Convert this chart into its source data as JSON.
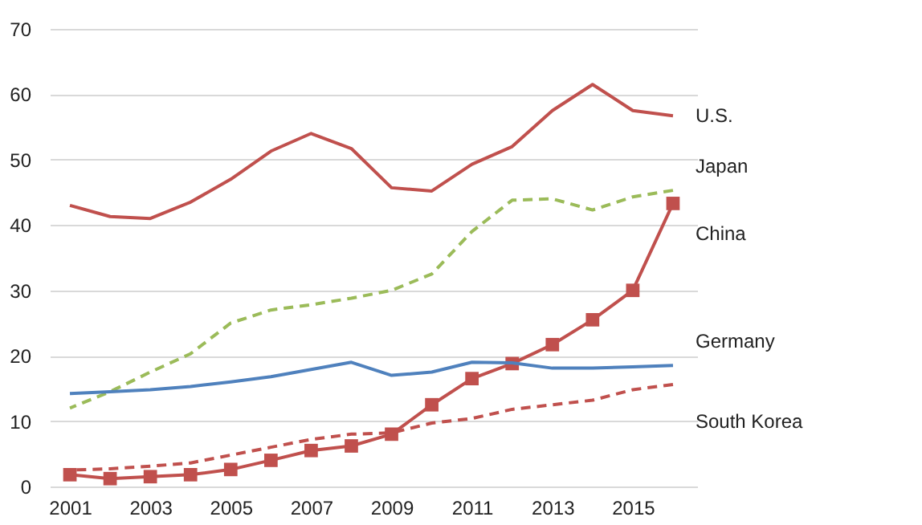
{
  "chart_data": {
    "type": "line",
    "x": [
      2001,
      2002,
      2003,
      2004,
      2005,
      2006,
      2007,
      2008,
      2009,
      2010,
      2011,
      2012,
      2013,
      2014,
      2015,
      2016
    ],
    "xlim": [
      2000.5,
      2016.6
    ],
    "xticks": [
      2001,
      2003,
      2005,
      2007,
      2009,
      2011,
      2013,
      2015
    ],
    "ylim": [
      0,
      70
    ],
    "yticks": [
      0,
      10,
      20,
      30,
      40,
      50,
      60,
      70
    ],
    "grid": "y",
    "legend": false,
    "series": [
      {
        "name": "U.S.",
        "color": "#c0504d",
        "line_style": "solid",
        "marker": "none",
        "values": [
          43,
          41.3,
          41,
          43.5,
          47,
          51.3,
          54,
          51.7,
          45.7,
          45.2,
          49.3,
          52,
          57.5,
          61.5,
          57.5,
          56.7
        ]
      },
      {
        "name": "Japan",
        "color": "#9bbb59",
        "line_style": "dashed",
        "marker": "none",
        "values": [
          12,
          14.5,
          17.5,
          20.3,
          25,
          27,
          27.8,
          28.8,
          30,
          32.5,
          39,
          43.8,
          44,
          42.3,
          44.3,
          45.3
        ]
      },
      {
        "name": "China",
        "color": "#c0504d",
        "line_style": "solid",
        "marker": "square",
        "values": [
          1.8,
          1.2,
          1.5,
          1.8,
          2.6,
          4,
          5.5,
          6.2,
          8,
          12.5,
          16.5,
          18.8,
          21.7,
          25.5,
          30,
          43.3
        ]
      },
      {
        "name": "Germany",
        "color": "#4f81bd",
        "line_style": "solid",
        "marker": "none",
        "values": [
          14.2,
          14.5,
          14.8,
          15.3,
          16,
          16.8,
          17.9,
          19,
          17,
          17.5,
          19,
          18.9,
          18.1,
          18.1,
          18.3,
          18.5
        ]
      },
      {
        "name": "South Korea",
        "color": "#c0504d",
        "line_style": "dashed",
        "marker": "none",
        "values": [
          2.5,
          2.7,
          3.1,
          3.6,
          4.8,
          6,
          7.2,
          8,
          8.2,
          9.7,
          10.4,
          11.8,
          12.5,
          13.2,
          14.8,
          15.6
        ]
      }
    ]
  }
}
